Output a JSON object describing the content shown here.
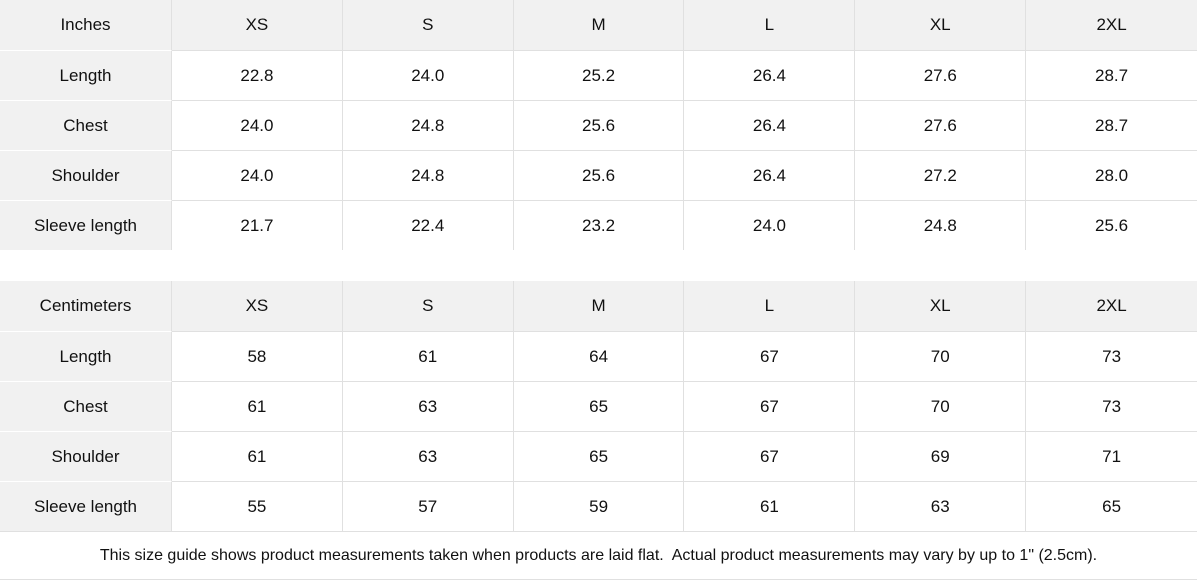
{
  "colors": {
    "header_bg": "#f1f1f1",
    "border": "#e0e0e0",
    "text": "#111111"
  },
  "tables": [
    {
      "unit_label": "Inches",
      "sizes": [
        "XS",
        "S",
        "M",
        "L",
        "XL",
        "2XL"
      ],
      "rows": [
        {
          "label": "Length",
          "values": [
            "22.8",
            "24.0",
            "25.2",
            "26.4",
            "27.6",
            "28.7"
          ]
        },
        {
          "label": "Chest",
          "values": [
            "24.0",
            "24.8",
            "25.6",
            "26.4",
            "27.6",
            "28.7"
          ]
        },
        {
          "label": "Shoulder",
          "values": [
            "24.0",
            "24.8",
            "25.6",
            "26.4",
            "27.2",
            "28.0"
          ]
        },
        {
          "label": "Sleeve length",
          "values": [
            "21.7",
            "22.4",
            "23.2",
            "24.0",
            "24.8",
            "25.6"
          ]
        }
      ]
    },
    {
      "unit_label": "Centimeters",
      "sizes": [
        "XS",
        "S",
        "M",
        "L",
        "XL",
        "2XL"
      ],
      "rows": [
        {
          "label": "Length",
          "values": [
            "58",
            "61",
            "64",
            "67",
            "70",
            "73"
          ]
        },
        {
          "label": "Chest",
          "values": [
            "61",
            "63",
            "65",
            "67",
            "70",
            "73"
          ]
        },
        {
          "label": "Shoulder",
          "values": [
            "61",
            "63",
            "65",
            "67",
            "69",
            "71"
          ]
        },
        {
          "label": "Sleeve length",
          "values": [
            "55",
            "57",
            "59",
            "61",
            "63",
            "65"
          ]
        }
      ]
    }
  ],
  "footer": {
    "note": "This size guide shows product measurements taken when products are laid flat.  Actual product measurements may vary by up to 1\" (2.5cm)."
  }
}
